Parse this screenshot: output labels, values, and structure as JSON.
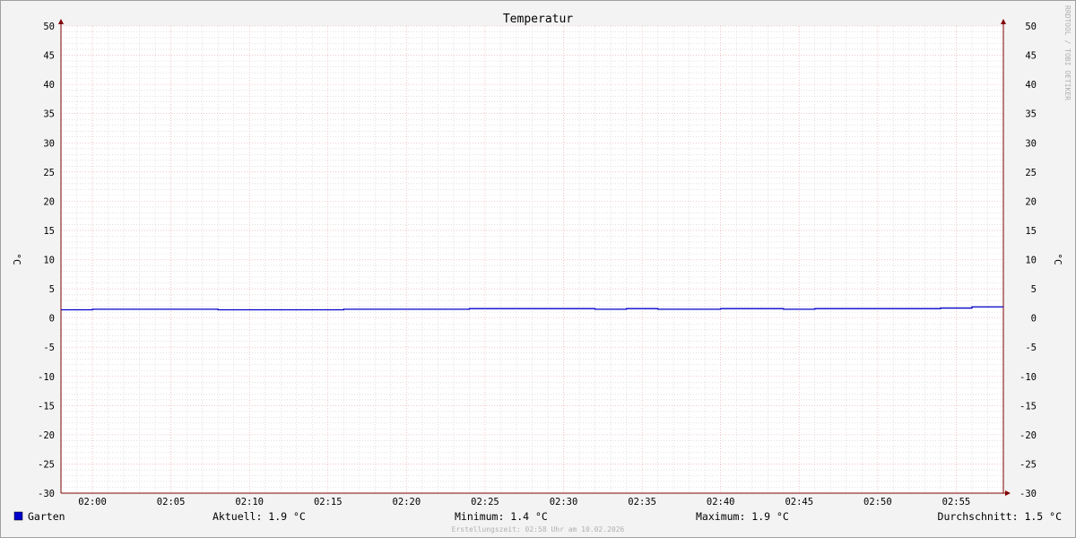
{
  "chart_data": {
    "type": "line",
    "title": "Temperatur",
    "ylabel": "°C",
    "ylabel_right": "°C",
    "watermark": "RRDTOOL / TOBI OETIKER",
    "footer": "Erstellungszeit: 02:58 Uhr am 10.02.2026",
    "xlim": [
      "01:58",
      "02:58"
    ],
    "ylim": [
      -30,
      50
    ],
    "y_ticks": [
      -30,
      -25,
      -20,
      -15,
      -10,
      -5,
      0,
      5,
      10,
      15,
      20,
      25,
      30,
      35,
      40,
      45,
      50
    ],
    "x_ticks": [
      "02:00",
      "02:05",
      "02:10",
      "02:15",
      "02:20",
      "02:25",
      "02:30",
      "02:35",
      "02:40",
      "02:45",
      "02:50",
      "02:55"
    ],
    "grid": true,
    "series": [
      {
        "name": "Garten",
        "color": "#0000cc",
        "step": true,
        "x": [
          "01:58",
          "02:00",
          "02:08",
          "02:16",
          "02:24",
          "02:32",
          "02:34",
          "02:36",
          "02:40",
          "02:44",
          "02:46",
          "02:54",
          "02:56",
          "02:58"
        ],
        "values": [
          1.4,
          1.5,
          1.4,
          1.5,
          1.6,
          1.5,
          1.6,
          1.5,
          1.6,
          1.5,
          1.6,
          1.7,
          1.9,
          1.9
        ]
      }
    ],
    "legend": {
      "placement": "bottom",
      "name": "Garten",
      "current": "Aktuell: 1.9 °C",
      "minimum": "Minimum: 1.4 °C",
      "maximum": "Maximum: 1.9 °C",
      "average": "Durchschnitt: 1.5 °C"
    },
    "colors": {
      "background": "#f3f3f3",
      "plot": "#ffffff",
      "minor_grid": "#cfcfcf",
      "major_grid": "#e8a0a0",
      "axis": "#800000"
    }
  }
}
